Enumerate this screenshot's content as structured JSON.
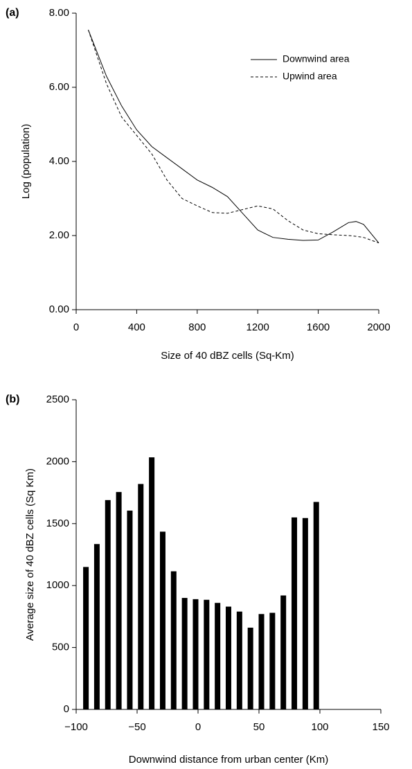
{
  "chart_data": [
    {
      "type": "line",
      "panel": "(a)",
      "x_label": "Size of 40 dBZ cells (Sq-Km)",
      "y_label": "Log (population)",
      "x": [
        80,
        200,
        300,
        400,
        500,
        600,
        700,
        800,
        900,
        1000,
        1100,
        1200,
        1300,
        1400,
        1500,
        1600,
        1700,
        1800,
        1850,
        1900,
        2000
      ],
      "series": [
        {
          "name": "Downwind area",
          "color": "#000000",
          "dash": false,
          "values": [
            7.55,
            6.3,
            5.5,
            4.85,
            4.4,
            4.1,
            3.8,
            3.5,
            3.3,
            3.05,
            2.6,
            2.15,
            1.95,
            1.9,
            1.87,
            1.88,
            2.1,
            2.35,
            2.38,
            2.3,
            1.8
          ]
        },
        {
          "name": "Upwind area",
          "color": "#000000",
          "dash": true,
          "values": [
            7.55,
            6.1,
            5.2,
            4.7,
            4.2,
            3.5,
            3.0,
            2.8,
            2.62,
            2.6,
            2.7,
            2.8,
            2.72,
            2.4,
            2.15,
            2.05,
            2.02,
            2.0,
            1.98,
            1.95,
            1.8
          ]
        }
      ],
      "xlim": [
        0,
        2000
      ],
      "xticks": [
        0,
        400,
        800,
        1200,
        1600,
        2000
      ],
      "ylim": [
        0,
        8
      ],
      "yticks": [
        {
          "value": 0,
          "label": "0.00"
        },
        {
          "value": 2,
          "label": "2.00"
        },
        {
          "value": 4,
          "label": "4.00"
        },
        {
          "value": 6,
          "label": "6.00"
        },
        {
          "value": 8,
          "label": "8.00"
        }
      ],
      "legend": "upper right"
    },
    {
      "type": "bar",
      "panel": "(b)",
      "x_label": "Downwind distance from urban center (Km)",
      "y_label": "Average size of 40 dBZ cells (Sq Km)",
      "x": [
        -92,
        -83,
        -74,
        -65,
        -56,
        -47,
        -38,
        -29,
        -20,
        -11,
        -2,
        7,
        16,
        25,
        34,
        43,
        52,
        61,
        70,
        79,
        88,
        97
      ],
      "values": [
        1150,
        1335,
        1690,
        1755,
        1605,
        1820,
        2035,
        1435,
        1115,
        900,
        890,
        885,
        860,
        830,
        790,
        660,
        770,
        780,
        920,
        1550,
        1545,
        1675
      ],
      "color": "#000000",
      "xlim": [
        -100,
        150
      ],
      "xticks": [
        {
          "value": -100,
          "label": "−100"
        },
        {
          "value": -50,
          "label": "−50"
        },
        0,
        50,
        100,
        150
      ],
      "ylim": [
        0,
        2500
      ],
      "yticks": [
        0,
        500,
        1000,
        1500,
        2000,
        2500
      ]
    }
  ]
}
